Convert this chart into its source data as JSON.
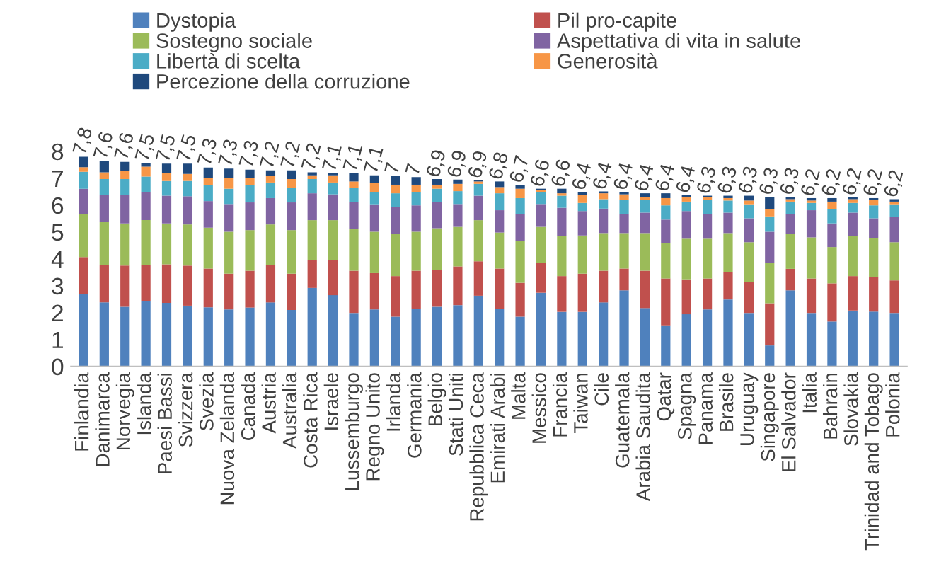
{
  "chart_data": {
    "type": "bar",
    "stacked": true,
    "categories": [
      "Finlandia",
      "Danimarca",
      "Norvegia",
      "Islanda",
      "Paesi Bassi",
      "Svizzera",
      "Svezia",
      "Nuova Zelanda",
      "Canada",
      "Austria",
      "Australia",
      "Costa Rica",
      "Israele",
      "Lussemburgo",
      "Regno Unito",
      "Irlanda",
      "Germania",
      "Belgio",
      "Stati Uniti",
      "Repubblica Ceca",
      "Emirati Arabi",
      "Malta",
      "Messico",
      "Francia",
      "Taiwan",
      "Cile",
      "Guatemala",
      "Arabia Saudita",
      "Qatar",
      "Spagna",
      "Panama",
      "Brasile",
      "Uruguay",
      "Singapore",
      "El Salvador",
      "Italia",
      "Bahrain",
      "Slovakia",
      "Trinidad and Tobago",
      "Polonia"
    ],
    "series": [
      {
        "name": "Dystopia",
        "color": "#4f81bd",
        "values": [
          2.7,
          2.38,
          2.22,
          2.42,
          2.36,
          2.26,
          2.2,
          2.12,
          2.19,
          2.38,
          2.1,
          2.92,
          2.65,
          1.99,
          2.12,
          1.85,
          2.13,
          2.22,
          2.28,
          2.63,
          2.13,
          1.85,
          2.74,
          2.03,
          2.03,
          2.38,
          2.83,
          2.17,
          1.53,
          1.94,
          2.12,
          2.49,
          1.99,
          0.78,
          2.83,
          1.99,
          1.67,
          2.08,
          2.04,
          1.99
        ]
      },
      {
        "name": "Pil pro-capite",
        "color": "#c0504d",
        "values": [
          1.37,
          1.39,
          1.53,
          1.35,
          1.44,
          1.49,
          1.44,
          1.33,
          1.37,
          1.39,
          1.35,
          1.04,
          1.31,
          1.57,
          1.35,
          1.51,
          1.43,
          1.37,
          1.44,
          1.28,
          1.51,
          1.26,
          1.12,
          1.33,
          1.42,
          1.18,
          0.81,
          1.39,
          1.74,
          1.3,
          1.15,
          1.01,
          1.16,
          1.57,
          0.8,
          1.28,
          1.42,
          1.28,
          1.28,
          1.21
        ]
      },
      {
        "name": "Sostegno sociale",
        "color": "#9bbb59",
        "values": [
          1.6,
          1.6,
          1.57,
          1.67,
          1.52,
          1.53,
          1.52,
          1.56,
          1.51,
          1.51,
          1.62,
          1.48,
          1.48,
          1.54,
          1.54,
          1.56,
          1.45,
          1.55,
          1.47,
          1.53,
          1.34,
          1.55,
          1.33,
          1.48,
          1.42,
          1.4,
          1.32,
          1.4,
          1.32,
          1.51,
          1.48,
          1.46,
          1.47,
          1.51,
          1.29,
          1.53,
          1.35,
          1.48,
          1.46,
          1.42
        ]
      },
      {
        "name": "Aspettativa di vita in salute",
        "color": "#8064a2",
        "values": [
          0.94,
          1.01,
          1.06,
          1.03,
          1.03,
          1.05,
          0.99,
          1.03,
          1.03,
          0.98,
          1.03,
          1.0,
          0.96,
          1.02,
          1.02,
          1.02,
          0.98,
          0.98,
          0.85,
          0.91,
          0.83,
          1.01,
          0.85,
          1.06,
          0.91,
          0.91,
          0.71,
          0.76,
          0.87,
          1.03,
          0.92,
          0.76,
          0.89,
          1.15,
          0.75,
          1.01,
          0.88,
          0.88,
          0.73,
          0.93
        ]
      },
      {
        "name": "Libertà di scelta",
        "color": "#4bacc6",
        "values": [
          0.63,
          0.59,
          0.59,
          0.59,
          0.55,
          0.57,
          0.59,
          0.57,
          0.64,
          0.58,
          0.55,
          0.53,
          0.44,
          0.53,
          0.46,
          0.5,
          0.5,
          0.49,
          0.48,
          0.44,
          0.63,
          0.59,
          0.43,
          0.45,
          0.3,
          0.35,
          0.53,
          0.48,
          0.53,
          0.35,
          0.53,
          0.45,
          0.52,
          0.57,
          0.46,
          0.27,
          0.53,
          0.36,
          0.48,
          0.48
        ]
      },
      {
        "name": "Generosità",
        "color": "#f79646",
        "values": [
          0.17,
          0.25,
          0.3,
          0.37,
          0.3,
          0.26,
          0.28,
          0.39,
          0.26,
          0.25,
          0.32,
          0.14,
          0.27,
          0.23,
          0.34,
          0.32,
          0.27,
          0.15,
          0.27,
          0.09,
          0.23,
          0.35,
          0.09,
          0.09,
          0.3,
          0.22,
          0.2,
          0.09,
          0.27,
          0.16,
          0.09,
          0.09,
          0.14,
          0.27,
          0.09,
          0.09,
          0.28,
          0.14,
          0.21,
          0.1
        ]
      },
      {
        "name": "Percezione della corruzione",
        "color": "#1f497d",
        "values": [
          0.39,
          0.42,
          0.34,
          0.13,
          0.34,
          0.38,
          0.38,
          0.36,
          0.32,
          0.2,
          0.32,
          0.11,
          0.07,
          0.3,
          0.28,
          0.32,
          0.28,
          0.21,
          0.16,
          0.05,
          0.21,
          0.15,
          0.05,
          0.17,
          0.11,
          0.07,
          0.09,
          0.15,
          0.18,
          0.09,
          0.06,
          0.09,
          0.18,
          0.46,
          0.09,
          0.09,
          0.13,
          0.07,
          0.06,
          0.09
        ]
      }
    ],
    "totals": [
      "7,8",
      "7,6",
      "7,6",
      "7,5",
      "7,5",
      "7,5",
      "7,3",
      "7,3",
      "7,3",
      "7,2",
      "7,2",
      "7,2",
      "7,1",
      "7,1",
      "7,1",
      "7",
      "7",
      "6,9",
      "6,9",
      "6,9",
      "6,8",
      "6,7",
      "6,6",
      "6,6",
      "6,4",
      "6,4",
      "6,4",
      "6,4",
      "6,4",
      "6,4",
      "6,3",
      "6,3",
      "6,3",
      "6,3",
      "6,3",
      "6,2",
      "6,2",
      "6,2",
      "6,2",
      "6,2"
    ],
    "ylim": [
      0,
      8
    ],
    "yticks": [
      0,
      1,
      2,
      3,
      4,
      5,
      6,
      7,
      8
    ],
    "grid": false,
    "legend": "top"
  }
}
